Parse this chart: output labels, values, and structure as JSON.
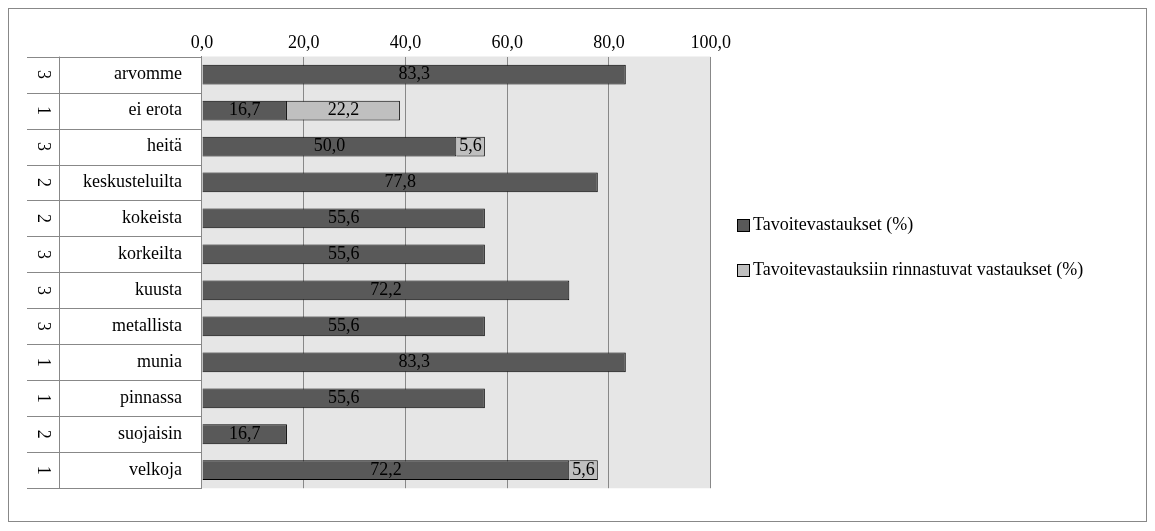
{
  "chart_data": {
    "type": "bar",
    "orientation": "horizontal",
    "stacked": true,
    "categories": [
      "arvomme",
      "ei erota",
      "heitä",
      "keskusteluilta",
      "kokeista",
      "korkeilta",
      "kuusta",
      "metallista",
      "munia",
      "pinnassa",
      "suojaisin",
      "velkoja"
    ],
    "series": [
      {
        "name": "Tavoitevastaukset (%)",
        "color": "#595959",
        "values": [
          83.3,
          16.7,
          50.0,
          77.8,
          55.6,
          55.6,
          72.2,
          55.6,
          83.3,
          55.6,
          16.7,
          72.2
        ],
        "value_labels": [
          "83,3",
          "16,7",
          "50,0",
          "77,8",
          "55,6",
          "55,6",
          "72,2",
          "55,6",
          "83,3",
          "55,6",
          "16,7",
          "72,2"
        ]
      },
      {
        "name": "Tavoitevastauksiin rinnastuvat vastaukset (%)",
        "color": "#bfbfbf",
        "values": [
          null,
          22.2,
          5.6,
          null,
          null,
          null,
          null,
          null,
          null,
          null,
          null,
          5.6
        ],
        "value_labels": [
          null,
          "22,2",
          "5,6",
          null,
          null,
          null,
          null,
          null,
          null,
          null,
          null,
          "5,6"
        ]
      }
    ],
    "xlim": [
      0,
      100
    ],
    "xticks": [
      {
        "value": 0,
        "label": "0,0"
      },
      {
        "value": 20,
        "label": "20,0"
      },
      {
        "value": 40,
        "label": "40,0"
      },
      {
        "value": 60,
        "label": "60,0"
      },
      {
        "value": 80,
        "label": "80,0"
      },
      {
        "value": 100,
        "label": "100,0"
      }
    ],
    "grid": "x",
    "legend": "right",
    "annotations": [
      "3",
      "1",
      "3",
      "2",
      "2",
      "3",
      "3",
      "3",
      "1",
      "1",
      "2",
      "1"
    ]
  }
}
